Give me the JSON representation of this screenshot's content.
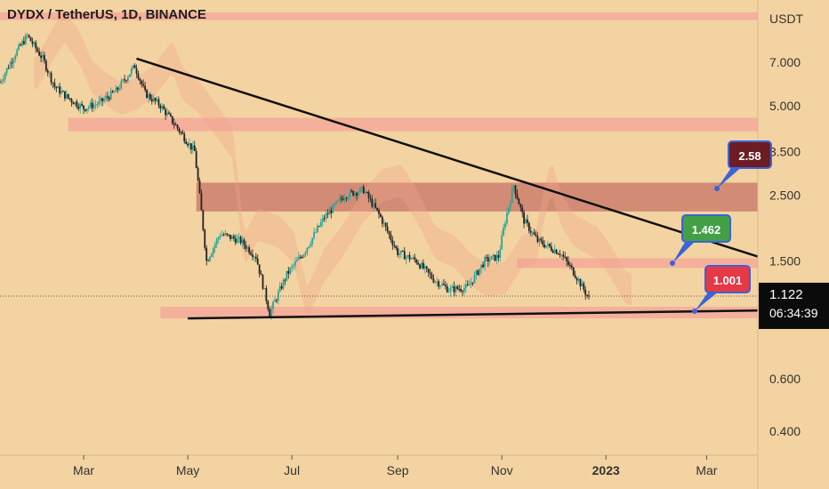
{
  "header": {
    "title": "DYDX / TetherUS, 1D, BINANCE"
  },
  "price_axis": {
    "currency": "USDT",
    "ticks": [
      {
        "label": "7.000",
        "value": 7.0
      },
      {
        "label": "5.000",
        "value": 5.0
      },
      {
        "label": "3.500",
        "value": 3.5
      },
      {
        "label": "2.500",
        "value": 2.5
      },
      {
        "label": "1.500",
        "value": 1.5
      },
      {
        "label": "0.600",
        "value": 0.6
      },
      {
        "label": "0.400",
        "value": 0.4
      }
    ],
    "current_price": "1.122",
    "countdown": "06:34:39"
  },
  "time_axis": {
    "labels": [
      "Mar",
      "May",
      "Jul",
      "Sep",
      "Nov",
      "2023",
      "Mar"
    ]
  },
  "callouts": [
    {
      "label": "2.58",
      "value": 2.58,
      "color": "#6d1c24"
    },
    {
      "label": "1.462",
      "value": 1.462,
      "color": "#43a047"
    },
    {
      "label": "1.001",
      "value": 1.001,
      "color": "#e53945"
    }
  ],
  "colors": {
    "background": "#f3d3a1",
    "up_candle": "#26a69a",
    "down_candle": "#222222",
    "trendline": "#111111",
    "zone": "#f4a49a",
    "resistance_zone": "#c97a6c"
  },
  "chart_data": {
    "type": "candlestick",
    "symbol": "DYDX / TetherUS",
    "timeframe": "1D",
    "exchange": "BINANCE",
    "y_scale": "log",
    "ylim": [
      0.35,
      10.5
    ],
    "xlim": [
      "2022-01-11",
      "2023-03-31"
    ],
    "x_ticks": [
      {
        "label": "Mar",
        "date": "2022-03-01"
      },
      {
        "label": "May",
        "date": "2022-05-01"
      },
      {
        "label": "Jul",
        "date": "2022-07-01"
      },
      {
        "label": "Sep",
        "date": "2022-09-01"
      },
      {
        "label": "Nov",
        "date": "2022-11-01"
      },
      {
        "label": "2023",
        "date": "2023-01-01"
      },
      {
        "label": "Mar",
        "date": "2023-03-01"
      }
    ],
    "price_path": [
      {
        "date": "2022-01-11",
        "price": 6.0
      },
      {
        "date": "2022-01-20",
        "price": 7.5
      },
      {
        "date": "2022-01-27",
        "price": 8.6
      },
      {
        "date": "2022-02-05",
        "price": 7.2
      },
      {
        "date": "2022-02-12",
        "price": 5.8
      },
      {
        "date": "2022-02-20",
        "price": 5.3
      },
      {
        "date": "2022-03-01",
        "price": 4.9
      },
      {
        "date": "2022-03-10",
        "price": 5.1
      },
      {
        "date": "2022-03-20",
        "price": 5.6
      },
      {
        "date": "2022-03-31",
        "price": 6.8
      },
      {
        "date": "2022-04-06",
        "price": 5.5
      },
      {
        "date": "2022-04-15",
        "price": 5.0
      },
      {
        "date": "2022-04-25",
        "price": 4.2
      },
      {
        "date": "2022-05-05",
        "price": 3.5
      },
      {
        "date": "2022-05-09",
        "price": 2.2
      },
      {
        "date": "2022-05-12",
        "price": 1.5
      },
      {
        "date": "2022-05-20",
        "price": 1.85
      },
      {
        "date": "2022-06-01",
        "price": 1.75
      },
      {
        "date": "2022-06-10",
        "price": 1.55
      },
      {
        "date": "2022-06-18",
        "price": 1.0
      },
      {
        "date": "2022-06-28",
        "price": 1.35
      },
      {
        "date": "2022-07-08",
        "price": 1.6
      },
      {
        "date": "2022-07-20",
        "price": 2.1
      },
      {
        "date": "2022-08-01",
        "price": 2.5
      },
      {
        "date": "2022-08-12",
        "price": 2.6
      },
      {
        "date": "2022-08-22",
        "price": 2.1
      },
      {
        "date": "2022-09-01",
        "price": 1.6
      },
      {
        "date": "2022-09-12",
        "price": 1.5
      },
      {
        "date": "2022-09-22",
        "price": 1.3
      },
      {
        "date": "2022-10-01",
        "price": 1.2
      },
      {
        "date": "2022-10-12",
        "price": 1.22
      },
      {
        "date": "2022-10-22",
        "price": 1.5
      },
      {
        "date": "2022-10-30",
        "price": 1.55
      },
      {
        "date": "2022-11-03",
        "price": 2.05
      },
      {
        "date": "2022-11-08",
        "price": 2.7
      },
      {
        "date": "2022-11-14",
        "price": 2.05
      },
      {
        "date": "2022-11-22",
        "price": 1.75
      },
      {
        "date": "2022-12-05",
        "price": 1.6
      },
      {
        "date": "2022-12-14",
        "price": 1.35
      },
      {
        "date": "2022-12-22",
        "price": 1.12
      }
    ],
    "trendlines": [
      {
        "name": "descending resistance",
        "from": {
          "date": "2022-04-01",
          "price": 7.2
        },
        "to": {
          "date": "2023-03-31",
          "price": 1.55
        }
      },
      {
        "name": "support",
        "from": {
          "date": "2022-05-01",
          "price": 0.96
        },
        "to": {
          "date": "2023-03-31",
          "price": 1.02
        }
      }
    ],
    "zones": [
      {
        "name": "top band",
        "from": "2022-01-11",
        "to": "2023-03-31",
        "low": 9.7,
        "high": 10.3
      },
      {
        "name": "upper supply",
        "from": "2022-02-20",
        "to": "2023-03-31",
        "low": 4.1,
        "high": 4.55
      },
      {
        "name": "resistance zone",
        "from": "2022-05-06",
        "to": "2023-03-31",
        "low": 2.2,
        "high": 2.75
      },
      {
        "name": "mid zone",
        "from": "2022-11-10",
        "to": "2023-03-31",
        "low": 1.42,
        "high": 1.53
      },
      {
        "name": "support zone",
        "from": "2022-04-15",
        "to": "2023-03-31",
        "low": 0.96,
        "high": 1.05
      }
    ],
    "current_price": 1.122
  }
}
